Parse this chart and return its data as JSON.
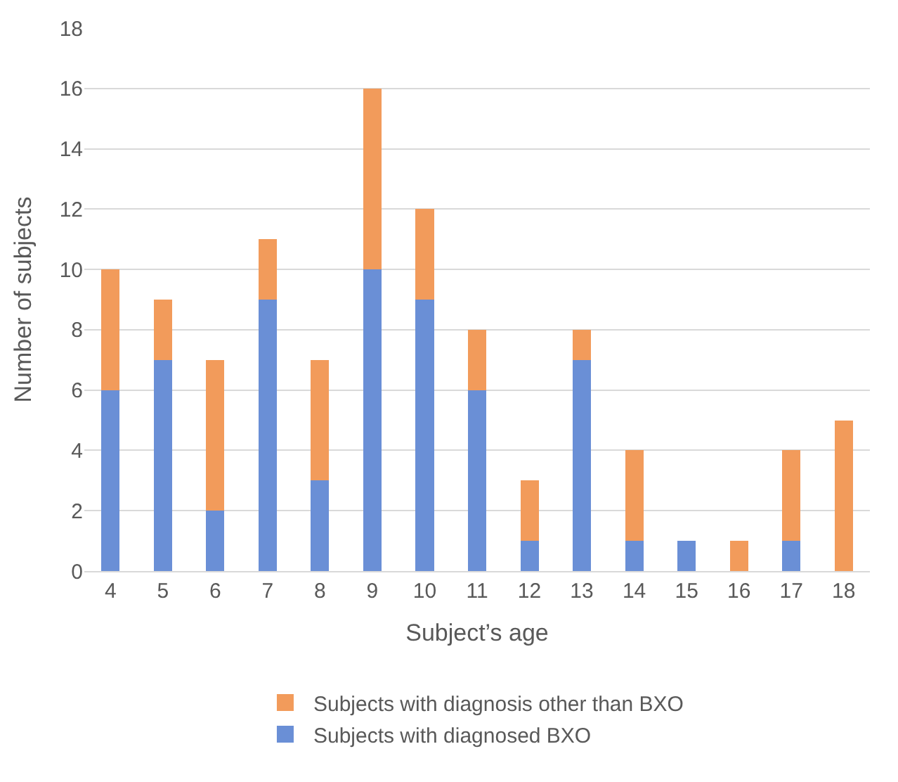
{
  "chart_data": {
    "type": "bar",
    "stacked": true,
    "xlabel": "Subject’s age",
    "ylabel": "Number of subjects",
    "categories": [
      "4",
      "5",
      "6",
      "7",
      "8",
      "9",
      "10",
      "11",
      "12",
      "13",
      "14",
      "15",
      "16",
      "17",
      "18"
    ],
    "series": [
      {
        "name": "Subjects with diagnosed BXO",
        "color": "#6a8fd6",
        "values": [
          6,
          7,
          2,
          9,
          3,
          10,
          9,
          6,
          1,
          7,
          1,
          1,
          0,
          1,
          0
        ]
      },
      {
        "name": "Subjects with diagnosis other than BXO",
        "color": "#f29b5b",
        "values": [
          4,
          2,
          5,
          2,
          4,
          6,
          3,
          2,
          2,
          1,
          3,
          0,
          1,
          3,
          5
        ]
      }
    ],
    "ylim": [
      0,
      18
    ],
    "yticks": [
      0,
      2,
      4,
      6,
      8,
      10,
      12,
      14,
      16,
      18
    ],
    "grid": "y",
    "legend": "bottom"
  }
}
